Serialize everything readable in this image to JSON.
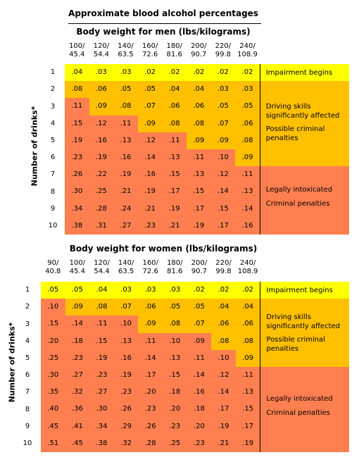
{
  "title": "Approximate blood alcohol percentages",
  "colors": {
    "yellow": "#ffff00",
    "orange": "#ffc000",
    "red": "#ff7f50"
  },
  "men": {
    "subtitle": "Body weight for men (lbs/kilograms)",
    "ylabel": "Number of drinks*",
    "weights": [
      {
        "lbs": "100/",
        "kg": "45.4"
      },
      {
        "lbs": "120/",
        "kg": "54.4"
      },
      {
        "lbs": "140/",
        "kg": "63.5"
      },
      {
        "lbs": "160/",
        "kg": "72.6"
      },
      {
        "lbs": "180/",
        "kg": "81.6"
      },
      {
        "lbs": "200/",
        "kg": "90.7"
      },
      {
        "lbs": "220/",
        "kg": "99.8"
      },
      {
        "lbs": "240/",
        "kg": "108.9"
      }
    ],
    "drinks": [
      "1",
      "2",
      "3",
      "4",
      "5",
      "6",
      "7",
      "8",
      "9",
      "10"
    ],
    "values": [
      [
        ".04",
        ".03",
        ".03",
        ".02",
        ".02",
        ".02",
        ".02",
        ".02"
      ],
      [
        ".08",
        ".06",
        ".05",
        ".05",
        ".04",
        ".04",
        ".03",
        ".03"
      ],
      [
        ".11",
        ".09",
        ".08",
        ".07",
        ".06",
        ".06",
        ".05",
        ".05"
      ],
      [
        ".15",
        ".12",
        ".11",
        ".09",
        ".08",
        ".08",
        ".07",
        ".06"
      ],
      [
        ".19",
        ".16",
        ".13",
        ".12",
        ".11",
        ".09",
        ".09",
        ".08"
      ],
      [
        ".23",
        ".19",
        ".16",
        ".14",
        ".13",
        ".11",
        ".10",
        ".09"
      ],
      [
        ".26",
        ".22",
        ".19",
        ".16",
        ".15",
        ".13",
        ".12",
        ".11"
      ],
      [
        ".30",
        ".25",
        ".21",
        ".19",
        ".17",
        ".15",
        ".14",
        ".13"
      ],
      [
        ".34",
        ".28",
        ".24",
        ".21",
        ".19",
        ".17",
        ".15",
        ".14"
      ],
      [
        ".38",
        ".31",
        ".27",
        ".23",
        ".21",
        ".19",
        ".17",
        ".16"
      ]
    ],
    "zones": [
      [
        "y",
        "y",
        "y",
        "y",
        "y",
        "y",
        "y",
        "y"
      ],
      [
        "o",
        "o",
        "o",
        "o",
        "o",
        "o",
        "o",
        "o"
      ],
      [
        "r",
        "o",
        "o",
        "o",
        "o",
        "o",
        "o",
        "o"
      ],
      [
        "r",
        "r",
        "r",
        "o",
        "o",
        "o",
        "o",
        "o"
      ],
      [
        "r",
        "r",
        "r",
        "r",
        "r",
        "o",
        "o",
        "o"
      ],
      [
        "r",
        "r",
        "r",
        "r",
        "r",
        "r",
        "r",
        "o"
      ],
      [
        "r",
        "r",
        "r",
        "r",
        "r",
        "r",
        "r",
        "r"
      ],
      [
        "r",
        "r",
        "r",
        "r",
        "r",
        "r",
        "r",
        "r"
      ],
      [
        "r",
        "r",
        "r",
        "r",
        "r",
        "r",
        "r",
        "r"
      ],
      [
        "r",
        "r",
        "r",
        "r",
        "r",
        "r",
        "r",
        "r"
      ]
    ],
    "notes": {
      "impairment": "Impairment begins",
      "driving": [
        "Driving skills",
        "significantly affected"
      ],
      "possible": [
        "Possible criminal",
        "penalties"
      ],
      "legal": "Legally intoxicated",
      "criminal": "Criminal penalties"
    }
  },
  "women": {
    "subtitle": "Body weight for women (lbs/kilograms)",
    "ylabel": "Number of drinks*",
    "weights": [
      {
        "lbs": "90/",
        "kg": "40.8"
      },
      {
        "lbs": "100/",
        "kg": "45.4"
      },
      {
        "lbs": "120/",
        "kg": "54.4"
      },
      {
        "lbs": "140/",
        "kg": "63.5"
      },
      {
        "lbs": "160/",
        "kg": "72.6"
      },
      {
        "lbs": "180/",
        "kg": "81.6"
      },
      {
        "lbs": "200/",
        "kg": "90.7"
      },
      {
        "lbs": "220/",
        "kg": "99.8"
      },
      {
        "lbs": "240/",
        "kg": "108.9"
      }
    ],
    "drinks": [
      "1",
      "2",
      "3",
      "4",
      "5",
      "6",
      "7",
      "8",
      "9",
      "10"
    ],
    "values": [
      [
        ".05",
        ".05",
        ".04",
        ".03",
        ".03",
        ".03",
        ".02",
        ".02",
        ".02"
      ],
      [
        ".10",
        ".09",
        ".08",
        ".07",
        ".06",
        ".05",
        ".05",
        ".04",
        ".04"
      ],
      [
        ".15",
        ".14",
        ".11",
        ".10",
        ".09",
        ".08",
        ".07",
        ".06",
        ".06"
      ],
      [
        ".20",
        ".18",
        ".15",
        ".13",
        ".11",
        ".10",
        ".09",
        ".08",
        ".08"
      ],
      [
        ".25",
        ".23",
        ".19",
        ".16",
        ".14",
        ".13",
        ".11",
        ".10",
        ".09"
      ],
      [
        ".30",
        ".27",
        ".23",
        ".19",
        ".17",
        ".15",
        ".14",
        ".12",
        ".11"
      ],
      [
        ".35",
        ".32",
        ".27",
        ".23",
        ".20",
        ".18",
        ".16",
        ".14",
        ".13"
      ],
      [
        ".40",
        ".36",
        ".30",
        ".26",
        ".23",
        ".20",
        ".18",
        ".17",
        ".15"
      ],
      [
        ".45",
        ".41",
        ".34",
        ".29",
        ".26",
        ".23",
        ".20",
        ".19",
        ".17"
      ],
      [
        ".51",
        ".45",
        ".38",
        ".32",
        ".28",
        ".25",
        ".23",
        ".21",
        ".19"
      ]
    ],
    "zones": [
      [
        "y",
        "y",
        "y",
        "y",
        "y",
        "y",
        "y",
        "y",
        "y"
      ],
      [
        "r",
        "o",
        "o",
        "o",
        "o",
        "o",
        "o",
        "o",
        "o"
      ],
      [
        "r",
        "r",
        "r",
        "r",
        "o",
        "o",
        "o",
        "o",
        "o"
      ],
      [
        "r",
        "r",
        "r",
        "r",
        "r",
        "r",
        "r",
        "o",
        "o"
      ],
      [
        "r",
        "r",
        "r",
        "r",
        "r",
        "r",
        "r",
        "r",
        "o"
      ],
      [
        "r",
        "r",
        "r",
        "r",
        "r",
        "r",
        "r",
        "r",
        "r"
      ],
      [
        "r",
        "r",
        "r",
        "r",
        "r",
        "r",
        "r",
        "r",
        "r"
      ],
      [
        "r",
        "r",
        "r",
        "r",
        "r",
        "r",
        "r",
        "r",
        "r"
      ],
      [
        "r",
        "r",
        "r",
        "r",
        "r",
        "r",
        "r",
        "r",
        "r"
      ],
      [
        "r",
        "r",
        "r",
        "r",
        "r",
        "r",
        "r",
        "r",
        "r"
      ]
    ],
    "notes": {
      "impairment": "Impairment begins",
      "driving": [
        "Driving skills",
        "significantly affected"
      ],
      "possible": [
        "Possible criminal",
        "penalties"
      ],
      "legal": "Legally intoxicated",
      "criminal": "Criminal penalties"
    }
  }
}
